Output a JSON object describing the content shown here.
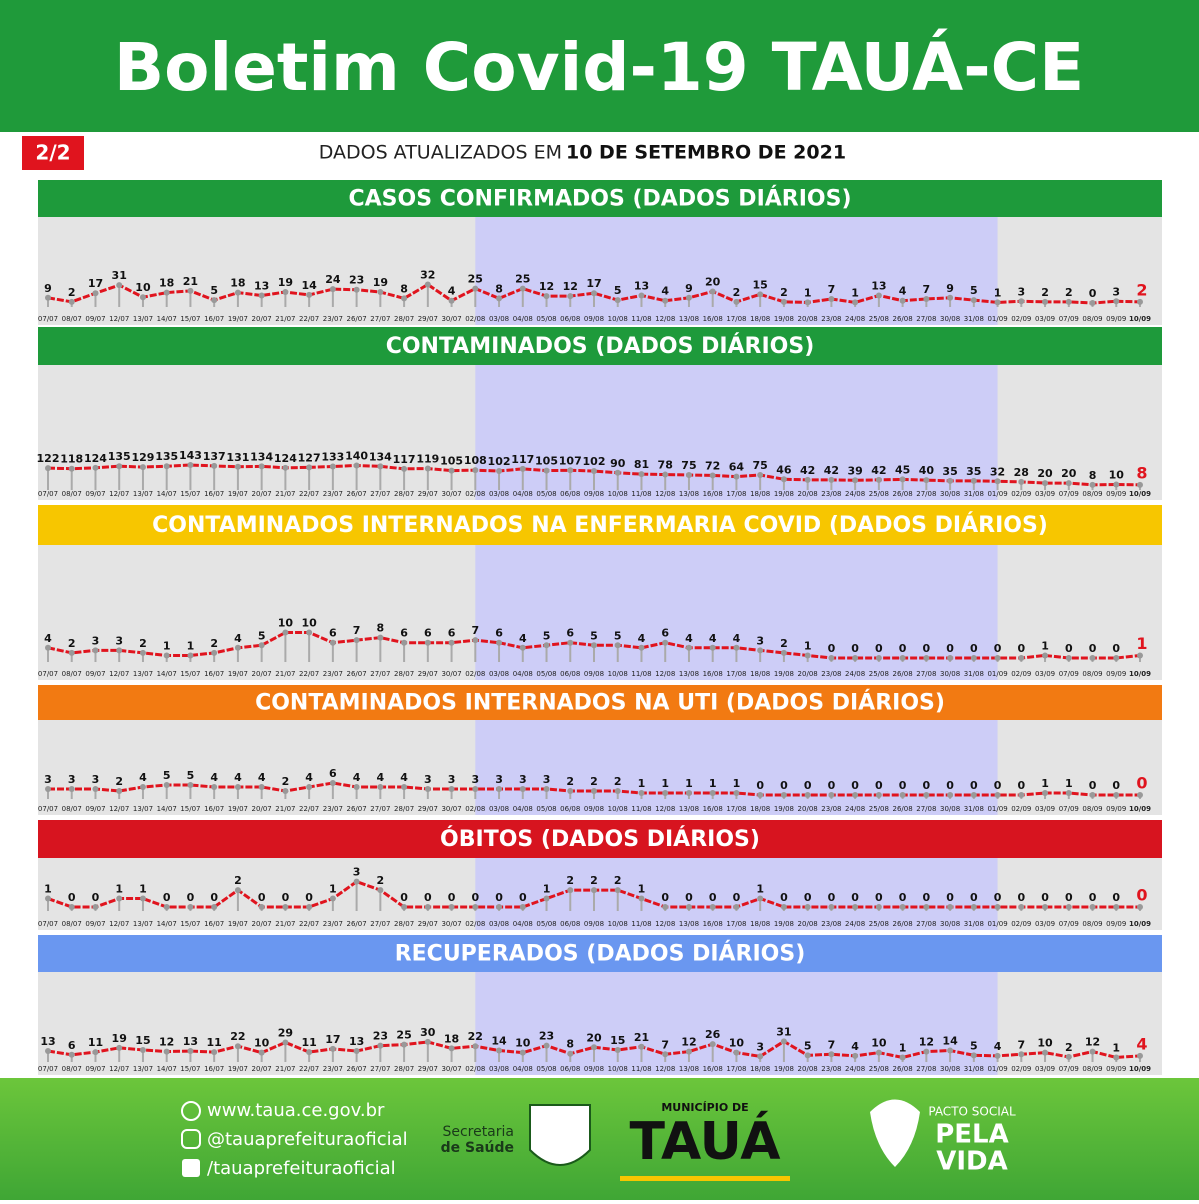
{
  "header": {
    "title": "Boletim Covid-19 TAUÁ-CE",
    "page": "2/2",
    "updated_prefix": "DADOS ATUALIZADOS EM",
    "updated_date": "10 DE SETEMBRO DE 2021"
  },
  "chart_data": [
    {
      "type": "line",
      "title": "CASOS CONFIRMADOS  (DADOS DIÁRIOS)",
      "title_color": "#1e9a3b",
      "categories": [
        "07/07",
        "08/07",
        "09/07",
        "12/07",
        "13/07",
        "14/07",
        "15/07",
        "16/07",
        "19/07",
        "20/07",
        "21/07",
        "22/07",
        "23/07",
        "26/07",
        "27/07",
        "28/07",
        "29/07",
        "30/07",
        "02/08",
        "03/08",
        "04/08",
        "05/08",
        "06/08",
        "09/08",
        "10/08",
        "11/08",
        "12/08",
        "13/08",
        "16/08",
        "17/08",
        "18/08",
        "19/08",
        "20/08",
        "23/08",
        "24/08",
        "25/08",
        "26/08",
        "27/08",
        "30/08",
        "31/08",
        "01/09",
        "02/09",
        "03/09",
        "07/09",
        "08/09",
        "09/09",
        "10/09"
      ],
      "series": [
        {
          "color": "#e0141e",
          "values": [
            9,
            2,
            17,
            31,
            10,
            18,
            21,
            5,
            18,
            13,
            19,
            14,
            24,
            23,
            19,
            8,
            32,
            4,
            25,
            8,
            25,
            12,
            12,
            17,
            5,
            13,
            4,
            9,
            20,
            2,
            15,
            2,
            1,
            7,
            1,
            13,
            4,
            7,
            9,
            5,
            1,
            3,
            2,
            2,
            0,
            3,
            2
          ]
        }
      ],
      "ylim": [
        0,
        130
      ]
    },
    {
      "type": "line",
      "title": "CONTAMINADOS  (DADOS DIÁRIOS)",
      "title_color": "#1e9a3b",
      "categories": [
        "07/07",
        "08/07",
        "09/07",
        "12/07",
        "13/07",
        "14/07",
        "15/07",
        "16/07",
        "19/07",
        "20/07",
        "21/07",
        "22/07",
        "23/07",
        "26/07",
        "27/07",
        "28/07",
        "29/07",
        "30/07",
        "02/08",
        "03/08",
        "04/08",
        "05/08",
        "06/08",
        "09/08",
        "10/08",
        "11/08",
        "12/08",
        "13/08",
        "16/08",
        "17/08",
        "18/08",
        "19/08",
        "20/08",
        "23/08",
        "24/08",
        "25/08",
        "26/08",
        "27/08",
        "30/08",
        "31/08",
        "01/09",
        "02/09",
        "03/09",
        "07/09",
        "08/09",
        "09/09",
        "10/09"
      ],
      "series": [
        {
          "color": "#e0141e",
          "values": [
            122,
            118,
            124,
            135,
            129,
            135,
            143,
            137,
            131,
            134,
            124,
            127,
            133,
            140,
            134,
            117,
            119,
            105,
            108,
            102,
            117,
            105,
            107,
            102,
            90,
            81,
            78,
            75,
            72,
            64,
            75,
            46,
            42,
            42,
            39,
            42,
            45,
            40,
            35,
            35,
            32,
            28,
            20,
            20,
            8,
            10,
            8
          ]
        }
      ],
      "ylim": [
        0,
        750
      ]
    },
    {
      "type": "line",
      "title": "CONTAMINADOS INTERNADOS NA ENFERMARIA COVID  (DADOS DIÁRIOS)",
      "title_color": "#f7c600",
      "categories": [
        "07/07",
        "08/07",
        "09/07",
        "12/07",
        "13/07",
        "14/07",
        "15/07",
        "16/07",
        "19/07",
        "20/07",
        "21/07",
        "22/07",
        "23/07",
        "26/07",
        "27/07",
        "28/07",
        "29/07",
        "30/07",
        "02/08",
        "03/08",
        "04/08",
        "05/08",
        "06/08",
        "09/08",
        "10/08",
        "11/08",
        "12/08",
        "13/08",
        "16/08",
        "17/08",
        "18/08",
        "19/08",
        "20/08",
        "23/08",
        "24/08",
        "25/08",
        "26/08",
        "27/08",
        "30/08",
        "31/08",
        "01/09",
        "02/09",
        "03/09",
        "07/09",
        "08/09",
        "09/09",
        "10/09"
      ],
      "series": [
        {
          "color": "#e0141e",
          "values": [
            4,
            2,
            3,
            3,
            2,
            1,
            1,
            2,
            4,
            5,
            10,
            10,
            6,
            7,
            8,
            6,
            6,
            6,
            7,
            6,
            4,
            5,
            6,
            5,
            5,
            4,
            6,
            4,
            4,
            4,
            3,
            2,
            1,
            0,
            0,
            0,
            0,
            0,
            0,
            0,
            0,
            0,
            1,
            0,
            0,
            0,
            1
          ]
        }
      ],
      "ylim": [
        0,
        40
      ]
    },
    {
      "type": "line",
      "title": "CONTAMINADOS INTERNADOS NA UTI  (DADOS DIÁRIOS)",
      "title_color": "#f27a12",
      "categories": [
        "07/07",
        "08/07",
        "09/07",
        "12/07",
        "13/07",
        "14/07",
        "15/07",
        "16/07",
        "19/07",
        "20/07",
        "21/07",
        "22/07",
        "23/07",
        "26/07",
        "27/07",
        "28/07",
        "29/07",
        "30/07",
        "02/08",
        "03/08",
        "04/08",
        "05/08",
        "06/08",
        "09/08",
        "10/08",
        "11/08",
        "12/08",
        "13/08",
        "16/08",
        "17/08",
        "18/08",
        "19/08",
        "20/08",
        "23/08",
        "24/08",
        "25/08",
        "26/08",
        "27/08",
        "30/08",
        "31/08",
        "01/09",
        "02/09",
        "03/09",
        "07/09",
        "08/09",
        "09/09",
        "10/09"
      ],
      "series": [
        {
          "color": "#e0141e",
          "values": [
            3,
            3,
            3,
            2,
            4,
            5,
            5,
            4,
            4,
            4,
            2,
            4,
            6,
            4,
            4,
            4,
            3,
            3,
            3,
            3,
            3,
            3,
            2,
            2,
            2,
            1,
            1,
            1,
            1,
            1,
            0,
            0,
            0,
            0,
            0,
            0,
            0,
            0,
            0,
            0,
            0,
            0,
            1,
            1,
            0,
            0,
            0
          ]
        }
      ],
      "ylim": [
        0,
        32
      ]
    },
    {
      "type": "line",
      "title": "ÓBITOS  (DADOS DIÁRIOS)",
      "title_color": "#d7141f",
      "categories": [
        "07/07",
        "08/07",
        "09/07",
        "12/07",
        "13/07",
        "14/07",
        "15/07",
        "16/07",
        "19/07",
        "20/07",
        "21/07",
        "22/07",
        "23/07",
        "26/07",
        "27/07",
        "28/07",
        "29/07",
        "30/07",
        "02/08",
        "03/08",
        "04/08",
        "05/08",
        "06/08",
        "09/08",
        "10/08",
        "11/08",
        "12/08",
        "13/08",
        "16/08",
        "17/08",
        "18/08",
        "19/08",
        "20/08",
        "23/08",
        "24/08",
        "25/08",
        "26/08",
        "27/08",
        "30/08",
        "31/08",
        "01/09",
        "02/09",
        "03/09",
        "07/09",
        "08/09",
        "09/09",
        "10/09"
      ],
      "series": [
        {
          "color": "#e0141e",
          "values": [
            1,
            0,
            0,
            1,
            1,
            0,
            0,
            0,
            2,
            0,
            0,
            0,
            1,
            3,
            2,
            0,
            0,
            0,
            0,
            0,
            0,
            1,
            2,
            2,
            2,
            1,
            0,
            0,
            0,
            0,
            1,
            0,
            0,
            0,
            0,
            0,
            0,
            0,
            0,
            0,
            0,
            0,
            0,
            0,
            0,
            0,
            0
          ]
        }
      ],
      "ylim": [
        0,
        4.5
      ]
    },
    {
      "type": "line",
      "title": "RECUPERADOS (DADOS DIÁRIOS)",
      "title_color": "#6a97f0",
      "categories": [
        "07/07",
        "08/07",
        "09/07",
        "12/07",
        "13/07",
        "14/07",
        "15/07",
        "16/07",
        "19/07",
        "20/07",
        "21/07",
        "22/07",
        "23/07",
        "26/07",
        "27/07",
        "28/07",
        "29/07",
        "30/07",
        "02/08",
        "03/08",
        "04/08",
        "05/08",
        "06/08",
        "09/08",
        "10/08",
        "11/08",
        "12/08",
        "13/08",
        "16/08",
        "17/08",
        "18/08",
        "19/08",
        "20/08",
        "23/08",
        "24/08",
        "25/08",
        "26/08",
        "27/08",
        "30/08",
        "31/08",
        "01/09",
        "02/09",
        "03/09",
        "07/09",
        "08/09",
        "09/09",
        "10/09"
      ],
      "series": [
        {
          "color": "#e0141e",
          "values": [
            13,
            6,
            11,
            19,
            15,
            12,
            13,
            11,
            22,
            10,
            29,
            11,
            17,
            13,
            23,
            25,
            30,
            18,
            22,
            14,
            10,
            23,
            8,
            20,
            15,
            21,
            7,
            12,
            26,
            10,
            3,
            31,
            5,
            7,
            4,
            10,
            1,
            12,
            14,
            5,
            4,
            7,
            10,
            2,
            12,
            1,
            4
          ]
        }
      ],
      "ylim": [
        0,
        140
      ]
    }
  ],
  "footer": {
    "site": "www.taua.ce.gov.br",
    "instagram": "@tauaprefeituraoficial",
    "facebook": "/tauaprefeituraoficial",
    "secretaria_1": "Secretaria",
    "secretaria_2": "de Saúde",
    "municipio": "MUNICÍPIO DE",
    "city": "TAUÁ",
    "pacto": "PACTO SOCIAL",
    "pela": "PELA",
    "vida": "VIDA"
  }
}
